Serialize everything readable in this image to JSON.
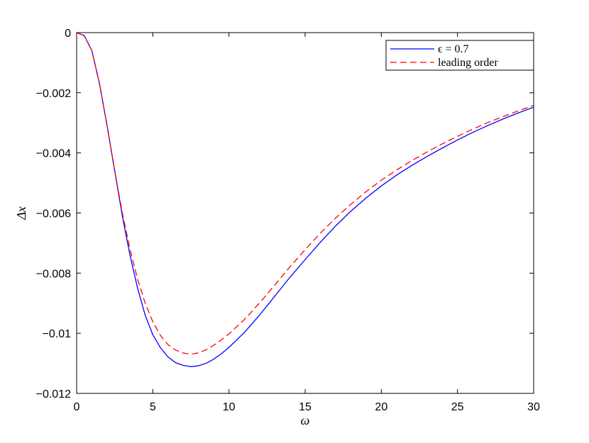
{
  "chart_data": {
    "type": "line",
    "title": "",
    "xlabel": "ω",
    "ylabel": "Δx",
    "xlim": [
      0,
      30
    ],
    "ylim": [
      -0.012,
      0
    ],
    "xticks": [
      0,
      5,
      10,
      15,
      20,
      25,
      30
    ],
    "xtick_labels": [
      "0",
      "5",
      "10",
      "15",
      "20",
      "25",
      "30"
    ],
    "yticks": [
      0,
      -0.002,
      -0.004,
      -0.006,
      -0.008,
      -0.01,
      -0.012
    ],
    "ytick_labels": [
      "0",
      "−0.002",
      "−0.004",
      "−0.006",
      "−0.008",
      "−0.01",
      "−0.012"
    ],
    "grid": false,
    "legend": {
      "placement": "top-right"
    },
    "series": [
      {
        "name": "ϵ = 0.7",
        "color": "#0000ff",
        "style": "solid",
        "x": [
          0,
          0.5,
          1,
          1.5,
          2,
          2.5,
          3,
          3.5,
          4,
          4.5,
          5,
          5.5,
          6,
          6.5,
          7,
          7.5,
          7.7,
          8,
          8.5,
          9,
          9.5,
          10,
          11,
          12,
          13,
          14,
          15,
          16,
          17,
          18,
          19,
          20,
          21,
          22,
          23,
          24,
          25,
          26,
          27,
          28,
          29,
          30
        ],
        "y": [
          0,
          -0.0001,
          -0.0006,
          -0.0017,
          -0.0031,
          -0.0046,
          -0.0061,
          -0.0074,
          -0.0085,
          -0.0094,
          -0.01005,
          -0.01048,
          -0.01079,
          -0.01098,
          -0.01107,
          -0.01111,
          -0.0111,
          -0.01108,
          -0.011,
          -0.01086,
          -0.01068,
          -0.01047,
          -0.00998,
          -0.0094,
          -0.00877,
          -0.00814,
          -0.00755,
          -0.00697,
          -0.00643,
          -0.00594,
          -0.0055,
          -0.0051,
          -0.00474,
          -0.00442,
          -0.00412,
          -0.00384,
          -0.00357,
          -0.00332,
          -0.00309,
          -0.00287,
          -0.00267,
          -0.00248
        ]
      },
      {
        "name": "leading order",
        "color": "#ff0000",
        "style": "dashed",
        "x": [
          0,
          0.5,
          1,
          1.5,
          2,
          2.5,
          3,
          3.5,
          4,
          4.5,
          5,
          5.5,
          6,
          6.5,
          7,
          7.5,
          7.7,
          8,
          8.5,
          9,
          9.5,
          10,
          11,
          12,
          13,
          14,
          15,
          16,
          17,
          18,
          19,
          20,
          21,
          22,
          23,
          24,
          25,
          26,
          27,
          28,
          29,
          30
        ],
        "y": [
          0,
          -0.0001,
          -0.0006,
          -0.0017,
          -0.0031,
          -0.0046,
          -0.006,
          -0.0072,
          -0.0082,
          -0.009,
          -0.00962,
          -0.01007,
          -0.01038,
          -0.01056,
          -0.01066,
          -0.01069,
          -0.01068,
          -0.01065,
          -0.01055,
          -0.0104,
          -0.01022,
          -0.01002,
          -0.00955,
          -0.009,
          -0.0084,
          -0.00779,
          -0.00722,
          -0.00667,
          -0.00617,
          -0.00571,
          -0.00529,
          -0.00491,
          -0.00457,
          -0.00426,
          -0.00397,
          -0.0037,
          -0.00345,
          -0.00321,
          -0.00299,
          -0.00279,
          -0.0026,
          -0.00242
        ]
      }
    ]
  }
}
